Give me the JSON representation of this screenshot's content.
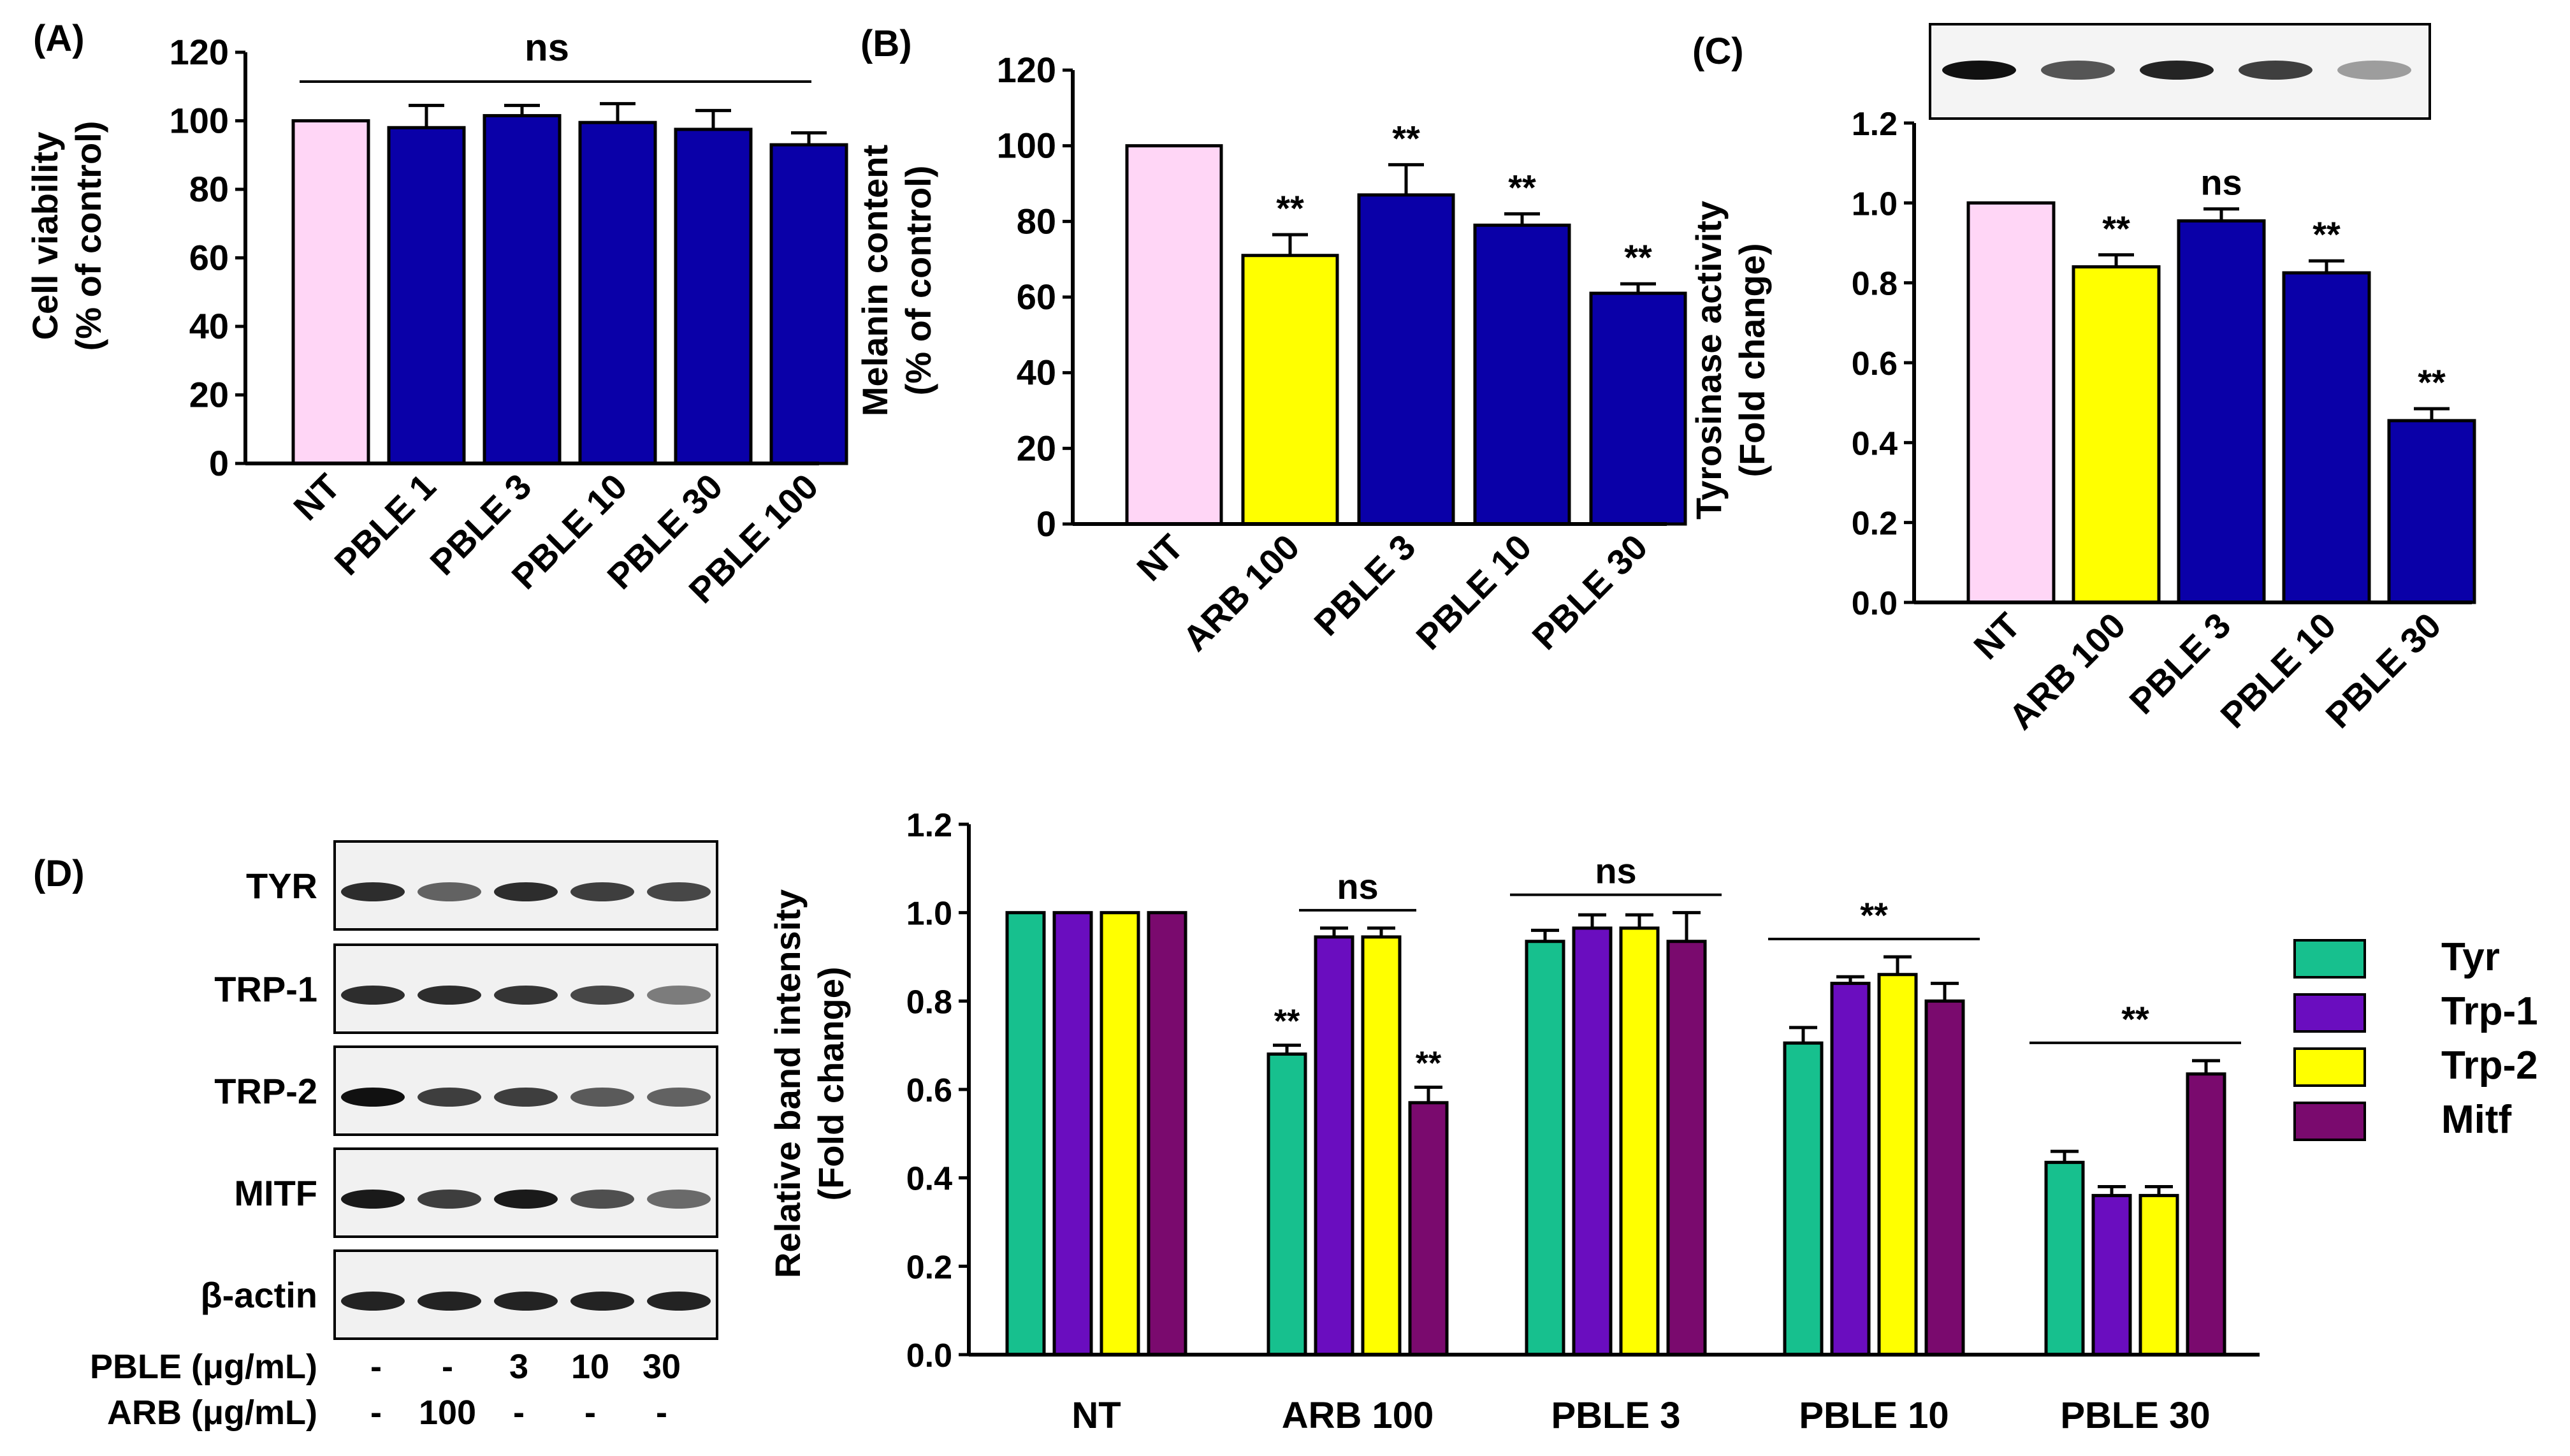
{
  "figure": {
    "colors": {
      "nt": "#ffd6f6",
      "arb": "#ffff00",
      "pble": "#0a00a8",
      "tyr": "#17c08e",
      "trp1": "#6a0dbf",
      "trp2": "#ffff00",
      "mitf": "#7a0a6e"
    }
  },
  "chart_data": [
    {
      "panel": "(A)",
      "type": "bar",
      "ylabel_lines": [
        "Cell viability",
        "(% of control)"
      ],
      "ylim": [
        0,
        120
      ],
      "yticks": [
        "0",
        "20",
        "40",
        "60",
        "80",
        "100",
        "120"
      ],
      "categories": [
        "NT",
        "PBLE 1",
        "PBLE 3",
        "PBLE 10",
        "PBLE 30",
        "PBLE 100"
      ],
      "values": [
        100,
        98,
        101.5,
        99.5,
        97.5,
        93
      ],
      "errors": [
        0,
        6.5,
        3,
        5.5,
        5.5,
        3.5
      ],
      "bar_colors": [
        "nt",
        "pble",
        "pble",
        "pble",
        "pble",
        "pble"
      ],
      "marks": [],
      "group_label": "ns"
    },
    {
      "panel": "(B)",
      "type": "bar",
      "ylabel_lines": [
        "Melanin content",
        "(% of control)"
      ],
      "ylim": [
        0,
        120
      ],
      "yticks": [
        "0",
        "20",
        "40",
        "60",
        "80",
        "100",
        "120"
      ],
      "categories": [
        "NT",
        "ARB 100",
        "PBLE 3",
        "PBLE 10",
        "PBLE 30"
      ],
      "values": [
        100,
        71,
        87,
        79,
        61
      ],
      "errors": [
        0,
        5.5,
        8,
        3,
        2.5
      ],
      "bar_colors": [
        "nt",
        "arb",
        "pble",
        "pble",
        "pble"
      ],
      "marks": [
        "",
        "**",
        "**",
        "**",
        "**"
      ]
    },
    {
      "panel": "(C)",
      "type": "bar",
      "ylabel_lines": [
        "Tyrosinase activity",
        "(Fold change)"
      ],
      "ylim": [
        0,
        1.2
      ],
      "yticks": [
        "0.0",
        "0.2",
        "0.4",
        "0.6",
        "0.8",
        "1.0",
        "1.2"
      ],
      "categories": [
        "NT",
        "ARB 100",
        "PBLE 3",
        "PBLE 10",
        "PBLE 30"
      ],
      "values": [
        1.0,
        0.84,
        0.955,
        0.825,
        0.455
      ],
      "errors": [
        0,
        0.03,
        0.03,
        0.03,
        0.03
      ],
      "bar_colors": [
        "nt",
        "arb",
        "pble",
        "pble",
        "pble"
      ],
      "marks": [
        "",
        "**",
        "ns",
        "**",
        "**"
      ],
      "blot_bands": [
        1.0,
        0.62,
        0.9,
        0.75,
        0.22
      ]
    },
    {
      "panel": "(D)",
      "type": "bar",
      "ylabel_lines": [
        "Relative band intensity",
        "(Fold change)"
      ],
      "ylim": [
        0,
        1.2
      ],
      "yticks": [
        "0.0",
        "0.2",
        "0.4",
        "0.6",
        "0.8",
        "1.0",
        "1.2"
      ],
      "categories": [
        "NT",
        "ARB 100",
        "PBLE 3",
        "PBLE 10",
        "PBLE 30"
      ],
      "series": [
        {
          "name": "Tyr",
          "color": "tyr",
          "values": [
            1.0,
            0.68,
            0.935,
            0.705,
            0.435
          ],
          "errors": [
            0,
            0.02,
            0.025,
            0.035,
            0.025
          ]
        },
        {
          "name": "Trp-1",
          "color": "trp1",
          "values": [
            1.0,
            0.945,
            0.965,
            0.84,
            0.36
          ],
          "errors": [
            0,
            0.02,
            0.03,
            0.015,
            0.02
          ]
        },
        {
          "name": "Trp-2",
          "color": "trp2",
          "values": [
            1.0,
            0.945,
            0.965,
            0.86,
            0.36
          ],
          "errors": [
            0,
            0.02,
            0.03,
            0.04,
            0.02
          ]
        },
        {
          "name": "Mitf",
          "color": "mitf",
          "values": [
            1.0,
            0.57,
            0.935,
            0.8,
            0.635
          ],
          "errors": [
            0,
            0.035,
            0.065,
            0.04,
            0.03
          ]
        }
      ],
      "annotations": [
        {
          "group": 1,
          "series": 0,
          "label": "**"
        },
        {
          "group": 1,
          "series": 3,
          "label": "**"
        },
        {
          "group": 1,
          "over": [
            1,
            2
          ],
          "label": "ns"
        },
        {
          "group": 2,
          "over": [
            0,
            3
          ],
          "label": "ns"
        },
        {
          "group": 3,
          "over": [
            0,
            3
          ],
          "label": "**"
        },
        {
          "group": 4,
          "over": [
            0,
            3
          ],
          "label": "**"
        }
      ]
    }
  ],
  "western": {
    "panel": "(D)",
    "rows": [
      {
        "label": "TYR",
        "bands": [
          0.85,
          0.55,
          0.85,
          0.75,
          0.7
        ]
      },
      {
        "label": "TRP-1",
        "bands": [
          0.85,
          0.85,
          0.8,
          0.7,
          0.4
        ]
      },
      {
        "label": "TRP-2",
        "bands": [
          1.0,
          0.75,
          0.75,
          0.6,
          0.55
        ]
      },
      {
        "label": "MITF",
        "bands": [
          0.95,
          0.75,
          0.95,
          0.65,
          0.5
        ]
      },
      {
        "label": "β-actin",
        "bands": [
          0.9,
          0.9,
          0.9,
          0.9,
          0.9
        ]
      }
    ],
    "treatments": [
      {
        "label": "PBLE (μg/mL)",
        "values": [
          "-",
          "-",
          "3",
          "10",
          "30"
        ]
      },
      {
        "label": "ARB (μg/mL)",
        "values": [
          "-",
          "100",
          "-",
          "-",
          "-"
        ]
      }
    ]
  }
}
